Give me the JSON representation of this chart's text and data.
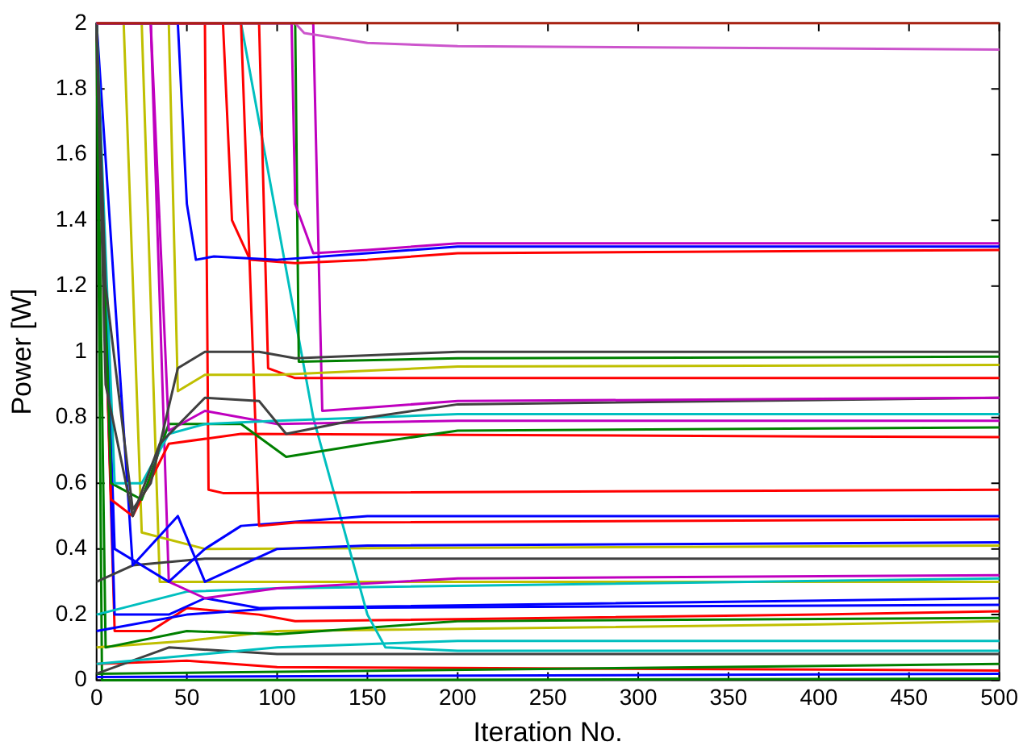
{
  "chart_data": {
    "type": "line",
    "xlabel": "Iteration No.",
    "ylabel": "Power [W]",
    "xlim": [
      0,
      500
    ],
    "ylim": [
      0,
      2
    ],
    "xticks": [
      0,
      50,
      100,
      150,
      200,
      250,
      300,
      350,
      400,
      450,
      500
    ],
    "yticks": [
      0,
      0.2,
      0.4,
      0.6,
      0.8,
      1,
      1.2,
      1.4,
      1.6,
      1.8,
      2
    ],
    "grid": false,
    "legend": false,
    "marker": "none",
    "line_style": "solid",
    "series": [
      {
        "color": "#aa2211",
        "x": [
          0,
          500
        ],
        "values": [
          2,
          2
        ]
      },
      {
        "color": "#cc55cc",
        "x": [
          0,
          110,
          115,
          150,
          200,
          500
        ],
        "values": [
          2,
          2,
          1.97,
          1.94,
          1.93,
          1.92
        ]
      },
      {
        "color": "#bf00bf",
        "x": [
          0,
          108,
          110,
          120,
          150,
          200,
          500
        ],
        "values": [
          2,
          2,
          1.45,
          1.3,
          1.31,
          1.33,
          1.33
        ]
      },
      {
        "color": "#0000ff",
        "x": [
          0,
          45,
          50,
          55,
          65,
          100,
          150,
          200,
          500
        ],
        "values": [
          2,
          2,
          1.45,
          1.28,
          1.29,
          1.28,
          1.3,
          1.32,
          1.32
        ]
      },
      {
        "color": "#ff0000",
        "x": [
          0,
          70,
          75,
          85,
          110,
          150,
          200,
          500
        ],
        "values": [
          2,
          2,
          1.4,
          1.28,
          1.27,
          1.28,
          1.3,
          1.31
        ]
      },
      {
        "color": "#404040",
        "x": [
          0,
          5,
          20,
          30,
          45,
          60,
          90,
          110,
          200,
          500
        ],
        "values": [
          2,
          1.2,
          0.52,
          0.6,
          0.95,
          1,
          1,
          0.98,
          1,
          1
        ]
      },
      {
        "color": "#008000",
        "x": [
          0,
          110,
          112,
          200,
          500
        ],
        "values": [
          2,
          2,
          0.97,
          0.98,
          0.985
        ]
      },
      {
        "color": "#bfbf00",
        "x": [
          0,
          40,
          45,
          60,
          100,
          200,
          500
        ],
        "values": [
          2,
          2,
          0.88,
          0.93,
          0.93,
          0.955,
          0.96
        ]
      },
      {
        "color": "#ff0000",
        "x": [
          0,
          90,
          95,
          110,
          500
        ],
        "values": [
          2,
          2,
          0.95,
          0.92,
          0.92
        ]
      },
      {
        "color": "#bf00bf",
        "x": [
          0,
          120,
          125,
          150,
          200,
          500
        ],
        "values": [
          2,
          2,
          0.82,
          0.83,
          0.85,
          0.86
        ]
      },
      {
        "color": "#404040",
        "x": [
          0,
          5,
          20,
          35,
          60,
          90,
          105,
          150,
          200,
          500
        ],
        "values": [
          2,
          0.9,
          0.5,
          0.72,
          0.86,
          0.85,
          0.75,
          0.8,
          0.84,
          0.86
        ]
      },
      {
        "color": "#00bfbf",
        "x": [
          0,
          10,
          25,
          40,
          60,
          100,
          200,
          500
        ],
        "values": [
          2,
          0.6,
          0.6,
          0.75,
          0.78,
          0.79,
          0.81,
          0.81
        ]
      },
      {
        "color": "#bf00bf",
        "x": [
          0,
          30,
          40,
          60,
          100,
          200,
          500
        ],
        "values": [
          2,
          2,
          0.76,
          0.82,
          0.78,
          0.79,
          0.79
        ]
      },
      {
        "color": "#008000",
        "x": [
          0,
          8,
          25,
          40,
          80,
          105,
          150,
          200,
          500
        ],
        "values": [
          2,
          0.6,
          0.55,
          0.78,
          0.78,
          0.68,
          0.72,
          0.76,
          0.77
        ]
      },
      {
        "color": "#ff0000",
        "x": [
          0,
          8,
          20,
          40,
          80,
          500
        ],
        "values": [
          2,
          0.55,
          0.5,
          0.72,
          0.75,
          0.74
        ]
      },
      {
        "color": "#ff0000",
        "x": [
          0,
          60,
          62,
          70,
          500
        ],
        "values": [
          2,
          2,
          0.58,
          0.57,
          0.58
        ]
      },
      {
        "color": "#ff0000",
        "x": [
          0,
          80,
          90,
          110,
          500
        ],
        "values": [
          2,
          2,
          0.47,
          0.48,
          0.49
        ]
      },
      {
        "color": "#0000ff",
        "x": [
          0,
          10,
          25,
          40,
          60,
          80,
          150,
          500
        ],
        "values": [
          2,
          0.4,
          0.35,
          0.3,
          0.4,
          0.47,
          0.5,
          0.5
        ]
      },
      {
        "color": "#00bfbf",
        "x": [
          0,
          80,
          100,
          120,
          150,
          160,
          200,
          500
        ],
        "values": [
          2,
          2,
          1.4,
          0.8,
          0.2,
          0.1,
          0.09,
          0.09
        ]
      },
      {
        "color": "#0000ff",
        "x": [
          0,
          20,
          45,
          60,
          100,
          150,
          500
        ],
        "values": [
          2,
          0.35,
          0.5,
          0.3,
          0.4,
          0.41,
          0.42
        ]
      },
      {
        "color": "#bfbf00",
        "x": [
          0,
          15,
          25,
          60,
          500
        ],
        "values": [
          2,
          2,
          0.45,
          0.4,
          0.41
        ]
      },
      {
        "color": "#404040",
        "x": [
          0,
          20,
          60,
          500
        ],
        "values": [
          0.3,
          0.35,
          0.37,
          0.37
        ]
      },
      {
        "color": "#bf00bf",
        "x": [
          0,
          30,
          40,
          60,
          100,
          200,
          500
        ],
        "values": [
          2,
          2,
          0.3,
          0.25,
          0.28,
          0.31,
          0.32
        ]
      },
      {
        "color": "#00bfbf",
        "x": [
          0,
          50,
          100,
          500
        ],
        "values": [
          0.2,
          0.27,
          0.28,
          0.31
        ]
      },
      {
        "color": "#bfbf00",
        "x": [
          0,
          25,
          35,
          60,
          500
        ],
        "values": [
          2,
          2,
          0.3,
          0.3,
          0.3
        ]
      },
      {
        "color": "#0000ff",
        "x": [
          0,
          10,
          40,
          60,
          90,
          500
        ],
        "values": [
          2,
          0.2,
          0.2,
          0.25,
          0.22,
          0.25
        ]
      },
      {
        "color": "#0000ff",
        "x": [
          0,
          50,
          100,
          500
        ],
        "values": [
          0.15,
          0.2,
          0.22,
          0.23
        ]
      },
      {
        "color": "#ff0000",
        "x": [
          0,
          10,
          30,
          50,
          90,
          110,
          400,
          500
        ],
        "values": [
          2,
          0.15,
          0.15,
          0.22,
          0.2,
          0.18,
          0.2,
          0.21
        ]
      },
      {
        "color": "#008000",
        "x": [
          0,
          5,
          50,
          100,
          200,
          500
        ],
        "values": [
          2,
          0.1,
          0.15,
          0.14,
          0.18,
          0.19
        ]
      },
      {
        "color": "#bfbf00",
        "x": [
          0,
          50,
          100,
          400,
          500
        ],
        "values": [
          0.1,
          0.12,
          0.15,
          0.17,
          0.18
        ]
      },
      {
        "color": "#00bfbf",
        "x": [
          0,
          100,
          200,
          500
        ],
        "values": [
          0.05,
          0.1,
          0.12,
          0.12
        ]
      },
      {
        "color": "#404040",
        "x": [
          0,
          40,
          100,
          500
        ],
        "values": [
          0.02,
          0.1,
          0.08,
          0.08
        ]
      },
      {
        "color": "#008000",
        "x": [
          0,
          500
        ],
        "values": [
          0.02,
          0.05
        ]
      },
      {
        "color": "#ff0000",
        "x": [
          0,
          50,
          100,
          500
        ],
        "values": [
          0.05,
          0.06,
          0.04,
          0.03
        ]
      },
      {
        "color": "#0000ff",
        "x": [
          0,
          500
        ],
        "values": [
          0.01,
          0.02
        ]
      },
      {
        "color": "#008000",
        "x": [
          0,
          3,
          500
        ],
        "values": [
          2,
          0,
          0.005
        ]
      }
    ]
  }
}
